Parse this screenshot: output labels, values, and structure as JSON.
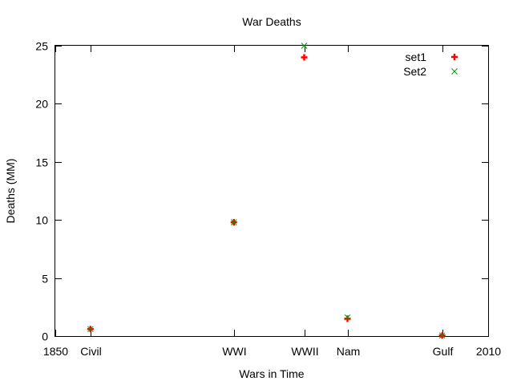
{
  "chart_data": {
    "type": "scatter",
    "title": "War Deaths",
    "xlabel": "Wars in Time",
    "ylabel": "Deaths (MM)",
    "xlim": [
      1850,
      2010
    ],
    "ylim": [
      0,
      25
    ],
    "x_ticks": [
      {
        "x": 1850,
        "label": "1850"
      },
      {
        "x": 1863,
        "label": "Civil"
      },
      {
        "x": 1916,
        "label": "WWI"
      },
      {
        "x": 1942,
        "label": "WWII"
      },
      {
        "x": 1958,
        "label": "Nam"
      },
      {
        "x": 1993,
        "label": "Gulf"
      },
      {
        "x": 2010,
        "label": "2010"
      }
    ],
    "y_ticks": [
      0,
      5,
      10,
      15,
      20,
      25
    ],
    "legend_position": "top-right",
    "series": [
      {
        "name": "set1",
        "color": "#ff0000",
        "marker": "plus",
        "points": [
          [
            1863,
            0.6
          ],
          [
            1916,
            9.8
          ],
          [
            1942,
            24.0
          ],
          [
            1958,
            1.5
          ],
          [
            1993,
            0.05
          ]
        ]
      },
      {
        "name": "Set2",
        "color": "#009900",
        "marker": "cross",
        "points": [
          [
            1863,
            0.6
          ],
          [
            1916,
            9.8
          ],
          [
            1942,
            25.0
          ],
          [
            1958,
            1.6
          ],
          [
            1993,
            0.05
          ]
        ]
      }
    ]
  }
}
